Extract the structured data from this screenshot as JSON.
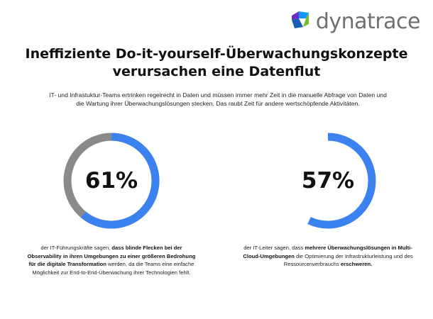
{
  "brand": {
    "name": "dynatrace",
    "accent": "#1496ff"
  },
  "headline": {
    "line1": "Ineffiziente Do-it-yourself-Überwachungskonzepte",
    "line2": "verursachen eine Datenflut"
  },
  "intro": "IT- und Infrastuktur-Teams ertrinken regelrecht in Daten und müssen immer mehr Zeit in die manuelle Abfrage von Daten und die Wartung ihrer Überwachungslösungen stecken. Das raubt Zeit für andere wertschöpfende Aktivitäten.",
  "stats": [
    {
      "value": "61%",
      "fraction": 0.61,
      "ring_colors": {
        "filled": "#3b82f0",
        "rest": "#8a8a8a"
      },
      "caption": {
        "t1": "der IT-Führungskräfte sagen, ",
        "b1": "dass blinde Flecken bei der Observability in ihren Umgebungen zu einer größeren Bedrohung für die digitale Transformation",
        "t2": " werden, da die Teams eine einfache Möglichkeit zur End-to-End-Überwachung ihrer Technologien fehlt."
      }
    },
    {
      "value": "57%",
      "fraction": 0.57,
      "ring_colors": {
        "filled": "#3b82f0",
        "rest": "#ffffff"
      },
      "caption": {
        "t1": "der IT-Leiter sagen, dass ",
        "b1": "mehrere Überwachungslösungen in Multi-Cloud-Umgebungen",
        "t2": " die Optimierung der Infrastrukturleistung und des Ressourcenverbrauchs ",
        "b2": "erschweren."
      }
    }
  ]
}
